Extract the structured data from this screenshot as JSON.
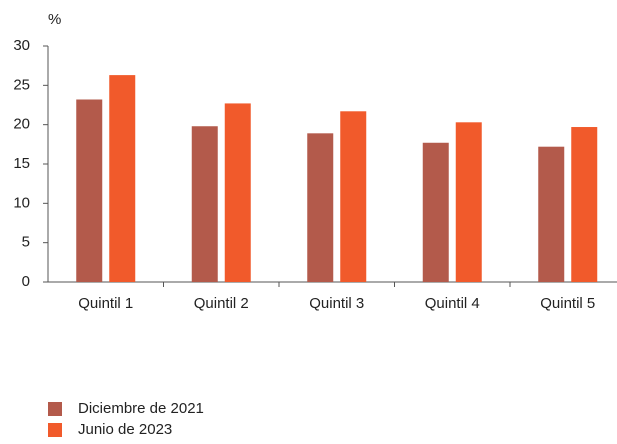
{
  "chart_data": {
    "type": "bar",
    "y_label": "%",
    "categories": [
      "Quintil 1",
      "Quintil 2",
      "Quintil 3",
      "Quintil 4",
      "Quintil 5"
    ],
    "series": [
      {
        "name": "Diciembre de 2021",
        "color": "#b35a4b",
        "values": [
          23.2,
          19.8,
          18.9,
          17.7,
          17.2
        ]
      },
      {
        "name": "Junio de 2023",
        "color": "#f15a2b",
        "values": [
          26.3,
          22.7,
          21.7,
          20.3,
          19.7
        ]
      }
    ],
    "ylim": [
      0,
      30
    ],
    "yticks": [
      0,
      5,
      10,
      15,
      20,
      25,
      30
    ],
    "legend": "bottom"
  }
}
